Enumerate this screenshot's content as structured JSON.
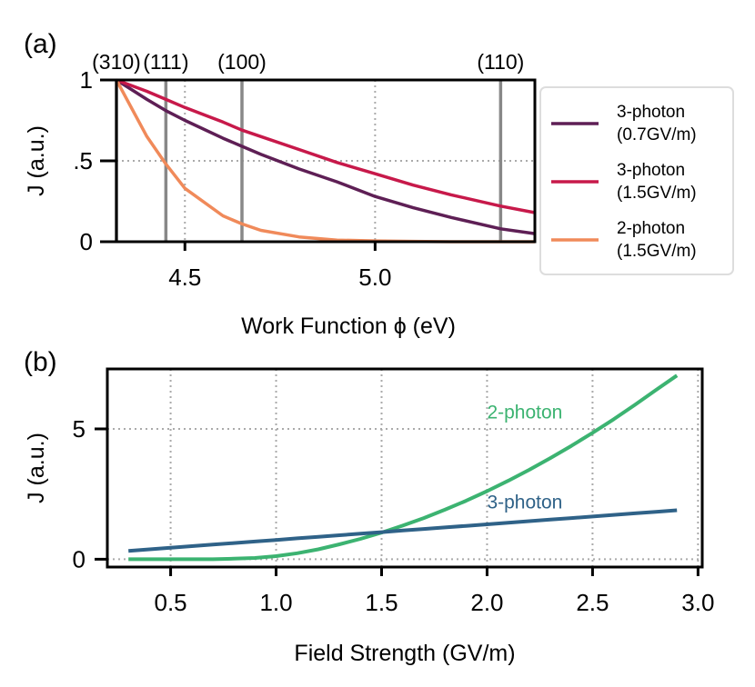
{
  "chart_data": [
    {
      "panel": "(a)",
      "type": "line",
      "title": "",
      "xlabel": "Work Function ϕ (eV)",
      "ylabel": "J (a.u.)",
      "xlim": [
        4.32,
        5.42
      ],
      "ylim": [
        0,
        1
      ],
      "xticks": [
        4.5,
        5.0
      ],
      "xtick_labels": [
        "4.5",
        "5.0"
      ],
      "yticks": [
        0,
        0.5,
        1
      ],
      "ytick_labels": [
        "0",
        ".5",
        "1"
      ],
      "grid": true,
      "vlines": [
        {
          "x": 4.32,
          "label": "(310)"
        },
        {
          "x": 4.45,
          "label": "(111)"
        },
        {
          "x": 4.65,
          "label": "(100)"
        },
        {
          "x": 5.33,
          "label": "(110)"
        }
      ],
      "x": [
        4.32,
        4.4,
        4.45,
        4.5,
        4.6,
        4.65,
        4.7,
        4.8,
        4.9,
        5.0,
        5.1,
        5.2,
        5.33,
        5.42
      ],
      "series": [
        {
          "name": "3-photon (0.7GV/m)",
          "legend_line1": "3-photon",
          "legend_line2": "(0.7GV/m)",
          "color": "#5e1f55",
          "values": [
            1.0,
            0.88,
            0.81,
            0.75,
            0.64,
            0.59,
            0.54,
            0.45,
            0.37,
            0.28,
            0.21,
            0.15,
            0.08,
            0.05
          ]
        },
        {
          "name": "3-photon (1.5GV/m)",
          "legend_line1": "3-photon",
          "legend_line2": "(1.5GV/m)",
          "color": "#c7194a",
          "values": [
            1.0,
            0.93,
            0.88,
            0.83,
            0.74,
            0.69,
            0.65,
            0.57,
            0.49,
            0.42,
            0.35,
            0.29,
            0.22,
            0.18
          ]
        },
        {
          "name": "2-photon (1.5GV/m)",
          "legend_line1": "2-photon",
          "legend_line2": "(1.5GV/m)",
          "color": "#f08a5a",
          "values": [
            1.0,
            0.65,
            0.48,
            0.33,
            0.16,
            0.11,
            0.07,
            0.03,
            0.01,
            0.005,
            0.002,
            0.0,
            0.0,
            0.0
          ]
        }
      ],
      "legend_position": "right"
    },
    {
      "panel": "(b)",
      "type": "line",
      "title": "",
      "xlabel": "Field Strength (GV/m)",
      "ylabel": "J (a.u.)",
      "xlim": [
        0.2,
        3.02
      ],
      "ylim": [
        -0.3,
        7.3
      ],
      "xticks": [
        0.5,
        1.0,
        1.5,
        2.0,
        2.5,
        3.0
      ],
      "xtick_labels": [
        "0.5",
        "1.0",
        "1.5",
        "2.0",
        "2.5",
        "3.0"
      ],
      "yticks": [
        0,
        5
      ],
      "ytick_labels": [
        "0",
        "5"
      ],
      "grid": true,
      "x": [
        0.3,
        0.5,
        0.7,
        0.8,
        0.9,
        1.0,
        1.1,
        1.2,
        1.3,
        1.4,
        1.5,
        1.6,
        1.7,
        1.8,
        1.9,
        2.0,
        2.1,
        2.2,
        2.3,
        2.4,
        2.5,
        2.6,
        2.7,
        2.8,
        2.9
      ],
      "series": [
        {
          "name": "2-photon",
          "color": "#3cb371",
          "values": [
            0.0,
            0.0,
            0.0,
            0.02,
            0.05,
            0.12,
            0.23,
            0.38,
            0.57,
            0.78,
            1.02,
            1.29,
            1.58,
            1.9,
            2.24,
            2.61,
            3.01,
            3.43,
            3.88,
            4.35,
            4.85,
            5.37,
            5.92,
            6.49,
            7.05
          ]
        },
        {
          "name": "3-photon",
          "color": "#2f6288",
          "values": [
            0.32,
            0.44,
            0.56,
            0.62,
            0.68,
            0.74,
            0.8,
            0.86,
            0.92,
            0.98,
            1.04,
            1.1,
            1.16,
            1.22,
            1.28,
            1.34,
            1.4,
            1.46,
            1.52,
            1.58,
            1.64,
            1.7,
            1.76,
            1.82,
            1.88
          ]
        }
      ],
      "annotations": [
        {
          "text": "2-photon",
          "x": 2.0,
          "y": 5.4,
          "color": "#3cb371"
        },
        {
          "text": "3-photon",
          "x": 2.0,
          "y": 1.95,
          "color": "#2f6288"
        }
      ]
    }
  ]
}
